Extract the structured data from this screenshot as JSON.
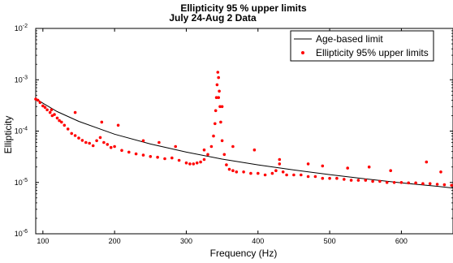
{
  "chart_data": {
    "type": "scatter",
    "title": [
      "Ellipticity 95 % upper limits",
      "July 24-Aug 2 Data"
    ],
    "xlabel": "Frequency (Hz)",
    "ylabel": "Ellipticity",
    "xlim": [
      90,
      672
    ],
    "ylim": [
      1e-06,
      0.01
    ],
    "yscale": "log",
    "grid": false,
    "legend_position": "top-right",
    "x_ticks": [
      100,
      200,
      300,
      400,
      500,
      600
    ],
    "x_tick_labels": [
      "100",
      "200",
      "300",
      "400",
      "500",
      "600"
    ],
    "y_ticks": [
      1e-06,
      1e-05,
      0.0001,
      0.001,
      0.01
    ],
    "y_tick_labels": [
      {
        "base": "10",
        "exp": "-6"
      },
      {
        "base": "10",
        "exp": "-5"
      },
      {
        "base": "10",
        "exp": "-4"
      },
      {
        "base": "10",
        "exp": "-3"
      },
      {
        "base": "10",
        "exp": "-2"
      }
    ],
    "series": [
      {
        "name": "Age-based limit",
        "kind": "line",
        "color": "#000000",
        "x": [
          90,
          100,
          120,
          150,
          200,
          250,
          300,
          350,
          400,
          450,
          500,
          550,
          600,
          650,
          672
        ],
        "y": [
          0.00043,
          0.00035,
          0.00024,
          0.000155,
          8.7e-05,
          5.6e-05,
          3.9e-05,
          2.85e-05,
          2.2e-05,
          1.75e-05,
          1.42e-05,
          1.17e-05,
          9.8e-06,
          8.4e-06,
          7.8e-06
        ]
      },
      {
        "name": "Ellipticity 95% upper limits",
        "kind": "scatter",
        "color": "#ff0000",
        "x": [
          90,
          93,
          96,
          100,
          103,
          106,
          110,
          113,
          116,
          120,
          123,
          126,
          130,
          135,
          140,
          145,
          150,
          155,
          160,
          165,
          170,
          175,
          180,
          185,
          190,
          195,
          200,
          210,
          220,
          230,
          240,
          250,
          260,
          270,
          280,
          290,
          300,
          305,
          310,
          315,
          320,
          325,
          330,
          335,
          338,
          340,
          341,
          342,
          343,
          344,
          345,
          346,
          347,
          348,
          350,
          353,
          356,
          360,
          365,
          370,
          380,
          390,
          400,
          410,
          420,
          425,
          430,
          435,
          440,
          450,
          460,
          470,
          480,
          490,
          500,
          510,
          520,
          530,
          540,
          550,
          560,
          570,
          580,
          590,
          600,
          610,
          620,
          630,
          640,
          650,
          660,
          670,
          112,
          145,
          182,
          205,
          240,
          262,
          285,
          325,
          345,
          350,
          365,
          395,
          430,
          470,
          490,
          525,
          555,
          585,
          635,
          655
        ],
        "y": [
          0.00042,
          0.0004,
          0.00036,
          0.00031,
          0.00029,
          0.00026,
          0.00023,
          0.0002,
          0.00021,
          0.00018,
          0.00016,
          0.00015,
          0.00013,
          0.00011,
          9e-05,
          8.2e-05,
          7.3e-05,
          6.6e-05,
          6e-05,
          5.8e-05,
          5.2e-05,
          6.5e-05,
          7.5e-05,
          6e-05,
          5.5e-05,
          4.8e-05,
          5e-05,
          4.2e-05,
          3.9e-05,
          3.6e-05,
          3.4e-05,
          3.2e-05,
          3.1e-05,
          2.9e-05,
          3e-05,
          2.7e-05,
          2.4e-05,
          2.3e-05,
          2.3e-05,
          2.4e-05,
          2.5e-05,
          2.8e-05,
          3.5e-05,
          5e-05,
          8e-05,
          0.00014,
          0.00025,
          0.00045,
          0.0008,
          0.0014,
          0.0011,
          0.0006,
          0.0003,
          0.00015,
          6.5e-05,
          3.5e-05,
          2.2e-05,
          1.8e-05,
          1.7e-05,
          1.6e-05,
          1.6e-05,
          1.5e-05,
          1.5e-05,
          1.4e-05,
          1.5e-05,
          1.7e-05,
          2.3e-05,
          1.6e-05,
          1.4e-05,
          1.4e-05,
          1.4e-05,
          1.3e-05,
          1.3e-05,
          1.2e-05,
          1.2e-05,
          1.2e-05,
          1.15e-05,
          1.1e-05,
          1.1e-05,
          1.1e-05,
          1.05e-05,
          1.05e-05,
          1e-05,
          1e-05,
          1e-05,
          9.8e-06,
          9.8e-06,
          9.5e-06,
          9.5e-06,
          9.2e-06,
          9e-06,
          8.8e-06,
          0.00026,
          0.00023,
          0.00015,
          0.00013,
          6.5e-05,
          6e-05,
          5e-05,
          4.3e-05,
          0.00045,
          0.0003,
          5e-05,
          4.3e-05,
          2.8e-05,
          2.3e-05,
          2.1e-05,
          1.9e-05,
          2e-05,
          1.7e-05,
          2.5e-05,
          1.6e-05
        ]
      }
    ]
  }
}
